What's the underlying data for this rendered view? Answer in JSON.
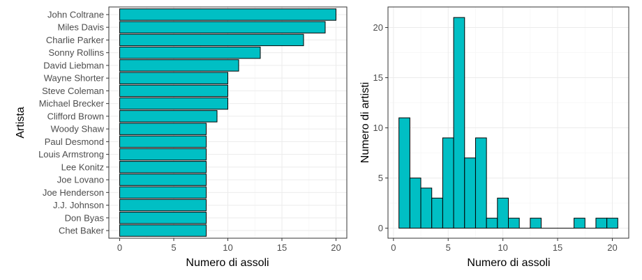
{
  "chart_data": [
    {
      "type": "bar",
      "orientation": "horizontal",
      "categories": [
        "John Coltrane",
        "Miles Davis",
        "Charlie Parker",
        "Sonny Rollins",
        "David Liebman",
        "Wayne Shorter",
        "Steve Coleman",
        "Michael Brecker",
        "Clifford Brown",
        "Woody Shaw",
        "Paul Desmond",
        "Louis Armstrong",
        "Lee Konitz",
        "Joe Lovano",
        "Joe Henderson",
        "J.J. Johnson",
        "Don Byas",
        "Chet Baker"
      ],
      "values": [
        20,
        19,
        17,
        13,
        11,
        10,
        10,
        10,
        9,
        8,
        8,
        8,
        8,
        8,
        8,
        8,
        8,
        8
      ],
      "xlabel": "Numero di assoli",
      "ylabel": "Artista",
      "xlim": [
        -1,
        21
      ],
      "xticks": [
        0,
        5,
        10,
        15,
        20
      ],
      "grid": true,
      "bar_color": "#00BFC4"
    },
    {
      "type": "bar",
      "subtype": "histogram",
      "bins": [
        1,
        2,
        3,
        4,
        5,
        6,
        7,
        8,
        9,
        10,
        11,
        12,
        13,
        14,
        15,
        16,
        17,
        18,
        19,
        20
      ],
      "values": [
        11,
        5,
        4,
        3,
        9,
        21,
        7,
        9,
        1,
        3,
        1,
        0,
        1,
        0,
        0,
        0,
        1,
        0,
        1,
        1
      ],
      "xlabel": "Numero di assoli",
      "ylabel": "Numero di artisti",
      "xlim": [
        -0.5,
        21.5
      ],
      "ylim": [
        -1,
        22.05
      ],
      "xticks": [
        0,
        5,
        10,
        15,
        20
      ],
      "yticks": [
        0,
        5,
        10,
        15,
        20
      ],
      "grid": true,
      "bar_color": "#00BFC4"
    }
  ]
}
